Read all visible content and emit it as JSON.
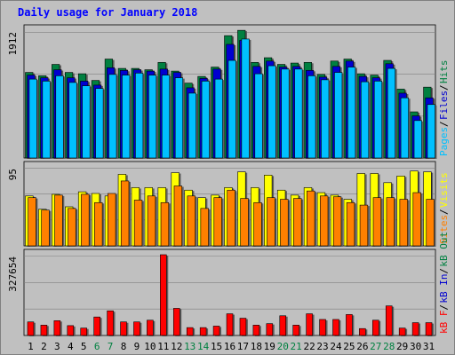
{
  "title": "Daily usage for January 2018",
  "colors": {
    "background": "#c0c0c0",
    "plot_bg": "#c0c0c0",
    "title": "#0000ff",
    "hits": "#008040",
    "files": "#0000d0",
    "pages": "#00c0ff",
    "visits": "#ffff00",
    "sites": "#ff8000",
    "kbf": "#ff0000",
    "kbin": "#0000d0",
    "kbout": "#008040",
    "grid": "#808080",
    "weekend_label": "#008040",
    "day_label": "#000000"
  },
  "chart_data": [
    {
      "type": "bar",
      "name": "hits-files-pages",
      "ymax_label": "1912",
      "ylim": [
        0,
        1912
      ],
      "legend": [
        "Pages",
        "Files",
        "Hits"
      ],
      "categories": [
        "1",
        "2",
        "3",
        "4",
        "5",
        "6",
        "7",
        "8",
        "9",
        "10",
        "11",
        "12",
        "13",
        "14",
        "15",
        "16",
        "17",
        "18",
        "19",
        "20",
        "21",
        "22",
        "23",
        "24",
        "25",
        "26",
        "27",
        "28",
        "29",
        "30",
        "31"
      ],
      "series": [
        {
          "name": "Hits",
          "values": [
            1280,
            1230,
            1400,
            1280,
            1260,
            1160,
            1480,
            1340,
            1340,
            1320,
            1430,
            1300,
            1120,
            1220,
            1360,
            1830,
            1910,
            1430,
            1500,
            1400,
            1420,
            1430,
            1250,
            1450,
            1480,
            1260,
            1240,
            1460,
            1030,
            690,
            1060
          ]
        },
        {
          "name": "Files",
          "values": [
            1240,
            1200,
            1320,
            1200,
            1150,
            1090,
            1350,
            1310,
            1320,
            1300,
            1330,
            1280,
            1050,
            1190,
            1330,
            1700,
            1760,
            1370,
            1450,
            1360,
            1370,
            1310,
            1210,
            1370,
            1450,
            1220,
            1200,
            1410,
            970,
            630,
            900
          ]
        },
        {
          "name": "Pages",
          "values": [
            1180,
            1150,
            1230,
            1130,
            1080,
            1040,
            1250,
            1240,
            1270,
            1240,
            1240,
            1200,
            970,
            1150,
            1180,
            1460,
            1780,
            1260,
            1380,
            1330,
            1330,
            1230,
            1170,
            1280,
            1360,
            1140,
            1150,
            1340,
            900,
            560,
            800
          ]
        }
      ]
    },
    {
      "type": "bar",
      "name": "visits-sites",
      "ymax_label": "95",
      "ylim": [
        0,
        95
      ],
      "legend": [
        "Sites",
        "Visits"
      ],
      "categories": [
        "1",
        "2",
        "3",
        "4",
        "5",
        "6",
        "7",
        "8",
        "9",
        "10",
        "11",
        "12",
        "13",
        "14",
        "15",
        "16",
        "17",
        "18",
        "19",
        "20",
        "21",
        "22",
        "23",
        "24",
        "25",
        "26",
        "27",
        "28",
        "29",
        "30",
        "31"
      ],
      "series": [
        {
          "name": "Visits",
          "values": [
            60,
            44,
            62,
            47,
            65,
            63,
            60,
            86,
            70,
            70,
            70,
            88,
            67,
            58,
            61,
            70,
            89,
            70,
            85,
            67,
            61,
            70,
            64,
            61,
            56,
            87,
            87,
            76,
            84,
            90,
            89
          ]
        },
        {
          "name": "Sites",
          "values": [
            58,
            43,
            61,
            45,
            62,
            52,
            63,
            78,
            55,
            60,
            52,
            72,
            60,
            45,
            58,
            67,
            57,
            52,
            58,
            56,
            57,
            66,
            60,
            59,
            52,
            49,
            58,
            58,
            56,
            64,
            56
          ]
        }
      ]
    },
    {
      "type": "bar",
      "name": "kbytes",
      "ymax_label": "327654",
      "ylim": [
        0,
        327654
      ],
      "legend": [
        "kB F",
        "kB In",
        "kB Out"
      ],
      "categories": [
        "1",
        "2",
        "3",
        "4",
        "5",
        "6",
        "7",
        "8",
        "9",
        "10",
        "11",
        "12",
        "13",
        "14",
        "15",
        "16",
        "17",
        "18",
        "19",
        "20",
        "21",
        "22",
        "23",
        "24",
        "25",
        "26",
        "27",
        "28",
        "29",
        "30",
        "31"
      ],
      "series": [
        {
          "name": "kB F",
          "values": [
            55000,
            42000,
            60000,
            40000,
            30000,
            75000,
            100000,
            55000,
            55000,
            62000,
            330000,
            110000,
            32000,
            32000,
            38000,
            88000,
            70000,
            42000,
            48000,
            80000,
            42000,
            88000,
            65000,
            65000,
            85000,
            28000,
            62000,
            120000,
            30000,
            52000,
            52000
          ]
        }
      ]
    }
  ]
}
